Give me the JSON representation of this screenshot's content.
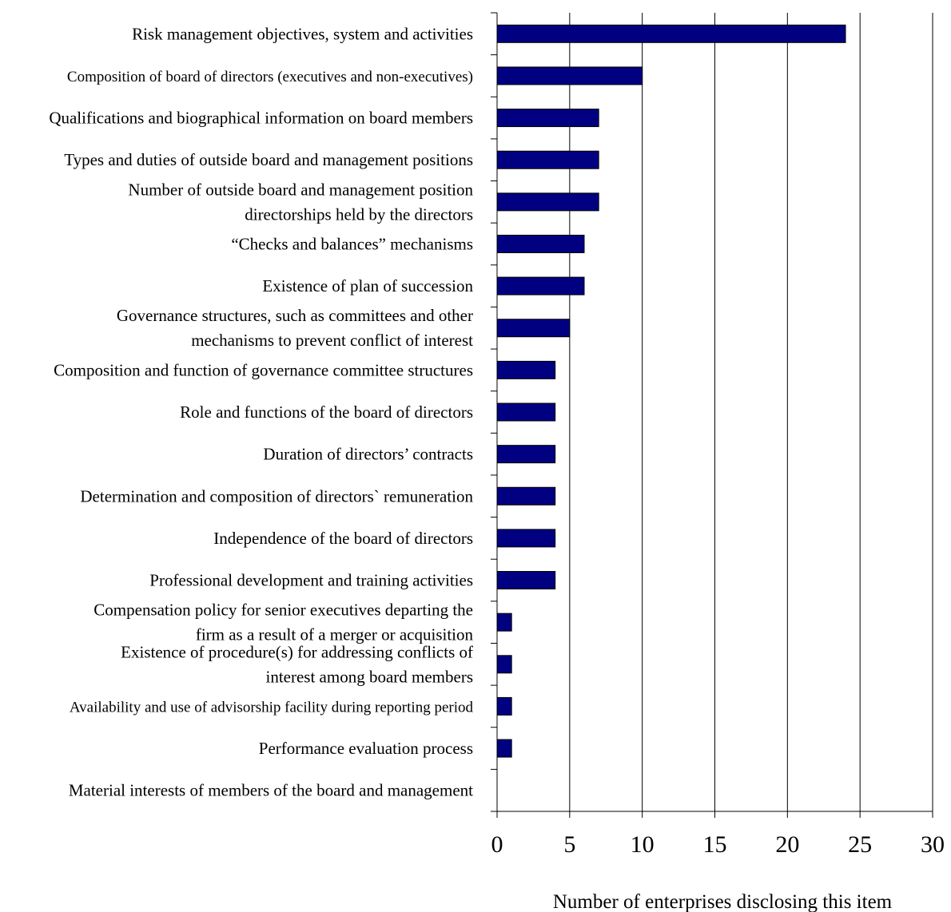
{
  "chart_data": {
    "type": "bar",
    "orientation": "horizontal",
    "title": "",
    "xlabel": "Number of enterprises disclosing this item",
    "ylabel": "",
    "xlim": [
      0,
      30
    ],
    "xticks": [
      0,
      5,
      10,
      15,
      20,
      25,
      30
    ],
    "grid": "vertical lines at major ticks",
    "legend": "none",
    "bar_color": "#000080",
    "categories": [
      [
        "Risk management objectives, system and activities"
      ],
      [
        "Composition of board of directors (executives and non-executives)"
      ],
      [
        "Qualifications and biographical information on board members"
      ],
      [
        "Types and duties of outside board and management positions"
      ],
      [
        "Number of outside board and management position",
        "directorships held by the directors"
      ],
      [
        "“Checks and balances” mechanisms"
      ],
      [
        "Existence of plan of succession"
      ],
      [
        "Governance structures, such as committees and other",
        "mechanisms to prevent conflict of interest"
      ],
      [
        "Composition and function of governance committee structures"
      ],
      [
        "Role and functions of the board of directors"
      ],
      [
        "Duration of directors’ contracts"
      ],
      [
        "Determination and composition of directors` remuneration"
      ],
      [
        "Independence of the board of directors"
      ],
      [
        "Professional development and training activities"
      ],
      [
        "Compensation policy for senior executives departing the",
        "firm as a result of a merger or acquisition"
      ],
      [
        "Existence of procedure(s) for addressing conflicts of",
        "interest among board members"
      ],
      [
        "Availability and use of advisorship facility during reporting period"
      ],
      [
        "Performance evaluation process"
      ],
      [
        "Material interests of members of the board and management"
      ]
    ],
    "values": [
      24,
      10,
      7,
      7,
      7,
      6,
      6,
      5,
      4,
      4,
      4,
      4,
      4,
      4,
      1,
      1,
      1,
      1,
      0
    ]
  }
}
